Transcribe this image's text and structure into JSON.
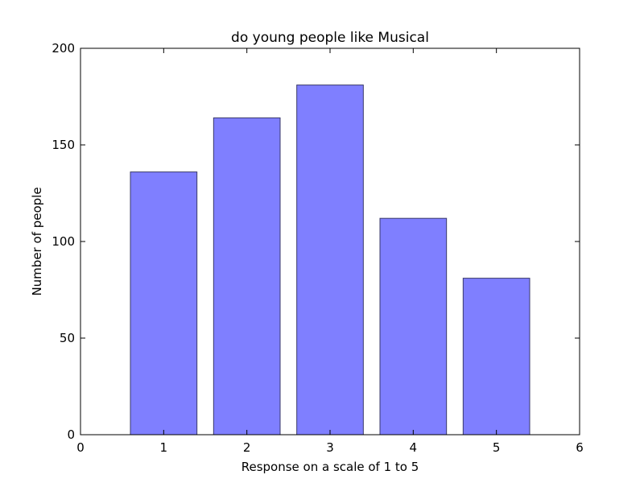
{
  "chart_data": {
    "type": "bar",
    "title": "do young people like Musical",
    "xlabel": "Response on a scale of 1 to 5",
    "ylabel": "Number of people",
    "x": [
      1,
      2,
      3,
      4,
      5
    ],
    "values": [
      136,
      164,
      181,
      112,
      81
    ],
    "xlim": [
      0,
      6
    ],
    "ylim": [
      0,
      200
    ],
    "xticks": [
      0,
      1,
      2,
      3,
      4,
      5,
      6
    ],
    "yticks": [
      0,
      50,
      100,
      150,
      200
    ],
    "bar_color": "#0000ff",
    "bar_width": 0.8,
    "grid": false
  }
}
